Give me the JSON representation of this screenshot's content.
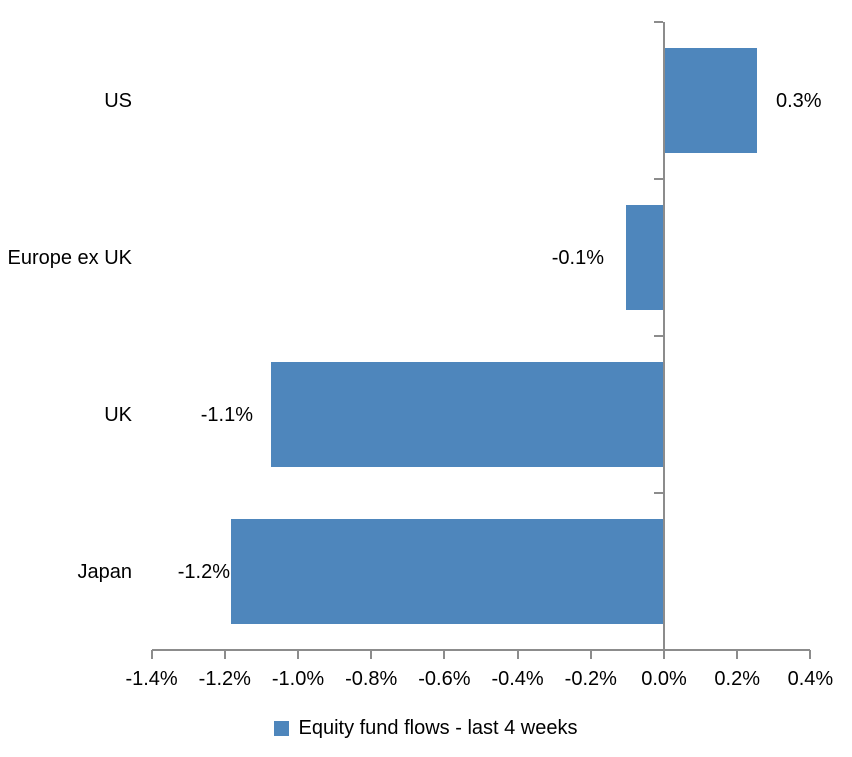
{
  "chart_data": {
    "type": "bar",
    "orientation": "horizontal",
    "title": "",
    "categories": [
      "US",
      "Europe ex UK",
      "UK",
      "Japan"
    ],
    "values": [
      0.3,
      -0.1,
      -1.1,
      -1.2
    ],
    "value_labels": [
      "0.3%",
      "-0.1%",
      "-1.1%",
      "-1.2%"
    ],
    "bar_lengths_pct": [
      0.25,
      -0.1,
      -1.07,
      -1.18
    ],
    "unit": "%",
    "xlabel": "",
    "ylabel": "",
    "xlim": [
      -1.4,
      0.4
    ],
    "x_tick_values": [
      -1.4,
      -1.2,
      -1.0,
      -0.8,
      -0.6,
      -0.4,
      -0.2,
      0.0,
      0.2,
      0.4
    ],
    "x_tick_labels": [
      "-1.4%",
      "-1.2%",
      "-1.0%",
      "-0.8%",
      "-0.6%",
      "-0.4%",
      "-0.2%",
      "0.0%",
      "0.2%",
      "0.4%"
    ],
    "grid": false,
    "legend": {
      "label": "Equity fund flows - last 4 weeks",
      "position": "bottom"
    },
    "colors": {
      "bar": "#4E86BC",
      "axis": "#8C8C8C",
      "text": "#000000",
      "background": "#FFFFFF"
    }
  }
}
